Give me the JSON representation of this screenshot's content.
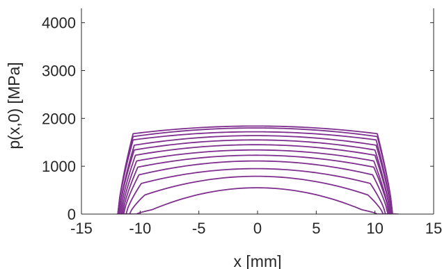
{
  "chart_data": {
    "type": "line",
    "title": "",
    "xlabel": "x [mm]",
    "ylabel": "p(x,0) [MPa]",
    "xlim": [
      -15,
      15
    ],
    "ylim": [
      0,
      4300
    ],
    "xticks": [
      -15,
      -10,
      -5,
      0,
      5,
      10,
      15
    ],
    "yticks": [
      0,
      1000,
      2000,
      3000,
      4000
    ],
    "xtick_labels": [
      "-15",
      "-10",
      "-5",
      "0",
      "5",
      "10",
      "15"
    ],
    "ytick_labels": [
      "0",
      "1000",
      "2000",
      "3000",
      "4000"
    ],
    "grid": false,
    "legend": false,
    "line_color": "#7e2f8e",
    "axis_color": "#262626",
    "series": [
      {
        "a": -9.0,
        "b": 8.9,
        "peak": 550,
        "edge": 90,
        "foot": -12.0,
        "footR": 12.0
      },
      {
        "a": -9.6,
        "b": 9.4,
        "peak": 790,
        "edge": 400,
        "foot": -11.9,
        "footR": 11.8
      },
      {
        "a": -9.9,
        "b": 9.6,
        "peak": 950,
        "edge": 640,
        "foot": -11.7,
        "footR": 11.6
      },
      {
        "a": -10.1,
        "b": 9.8,
        "peak": 1110,
        "edge": 820,
        "foot": -11.6,
        "footR": 11.5
      },
      {
        "a": -10.2,
        "b": 9.9,
        "peak": 1230,
        "edge": 980,
        "foot": -11.5,
        "footR": 11.4
      },
      {
        "a": -10.3,
        "b": 9.9,
        "peak": 1340,
        "edge": 1110,
        "foot": -11.4,
        "footR": 11.3
      },
      {
        "a": -10.4,
        "b": 10.0,
        "peak": 1450,
        "edge": 1230,
        "foot": -11.3,
        "footR": 11.2
      },
      {
        "a": -10.5,
        "b": 10.0,
        "peak": 1550,
        "edge": 1340,
        "foot": -11.2,
        "footR": 11.1
      },
      {
        "a": -10.5,
        "b": 10.1,
        "peak": 1640,
        "edge": 1440,
        "foot": -11.1,
        "footR": 11.0
      },
      {
        "a": -10.6,
        "b": 10.1,
        "peak": 1720,
        "edge": 1550,
        "foot": -11.0,
        "footR": 10.9
      },
      {
        "a": -10.6,
        "b": 10.2,
        "peak": 1800,
        "edge": 1620,
        "foot": -10.9,
        "footR": 10.8
      },
      {
        "a": -10.6,
        "b": 10.2,
        "peak": 1840,
        "edge": 1680,
        "foot": -10.8,
        "footR": 10.8
      }
    ]
  }
}
